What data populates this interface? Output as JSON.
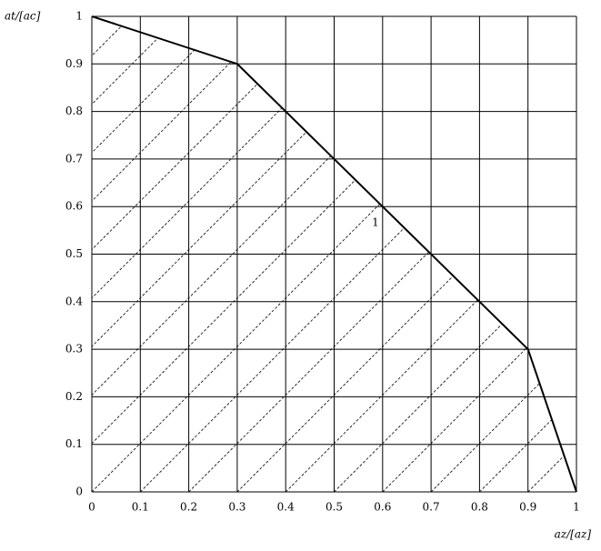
{
  "chart_data": {
    "type": "line",
    "xlabel": "az/[az]",
    "ylabel": "at/[ac]",
    "x": [
      0,
      0.3,
      0.9,
      1
    ],
    "series": [
      {
        "values": [
          1,
          0.9,
          0.3,
          0
        ],
        "color": "#000000"
      }
    ],
    "xlim": [
      0,
      1
    ],
    "ylim": [
      0,
      1
    ],
    "xticks": [
      0,
      0.1,
      0.2,
      0.3,
      0.4,
      0.5,
      0.6,
      0.7,
      0.8,
      0.9,
      1
    ],
    "yticks": [
      0,
      0.1,
      0.2,
      0.3,
      0.4,
      0.5,
      0.6,
      0.7,
      0.8,
      0.9,
      1
    ],
    "grid": true,
    "hatch_below": true,
    "annotations": [
      {
        "text": "1"
      }
    ]
  }
}
